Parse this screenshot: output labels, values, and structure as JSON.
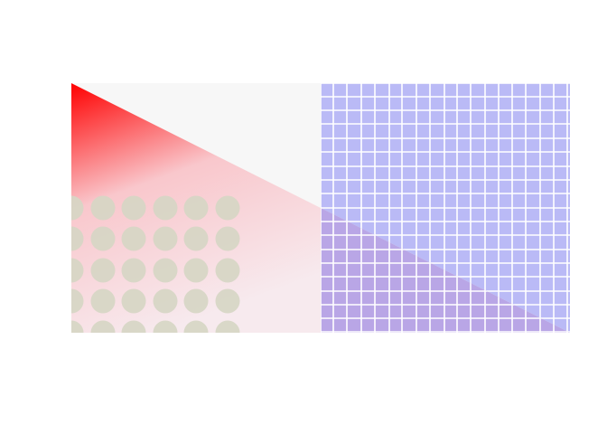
{
  "colors": {
    "page_background": "#ffffff",
    "panel_background": "#f7f7f7",
    "gradient_start": "#ff0000",
    "gradient_mid": "#f9c7cc",
    "gradient_end": "#f7eaee",
    "circle_fill": "#d6d6c4",
    "grid_fill": "#babaf6",
    "grid_line": "#ffffff",
    "overlap_tint": "#b9a6e6"
  },
  "patterns": {
    "circle_pattern": "dots",
    "grid_pattern": "square-grid"
  }
}
